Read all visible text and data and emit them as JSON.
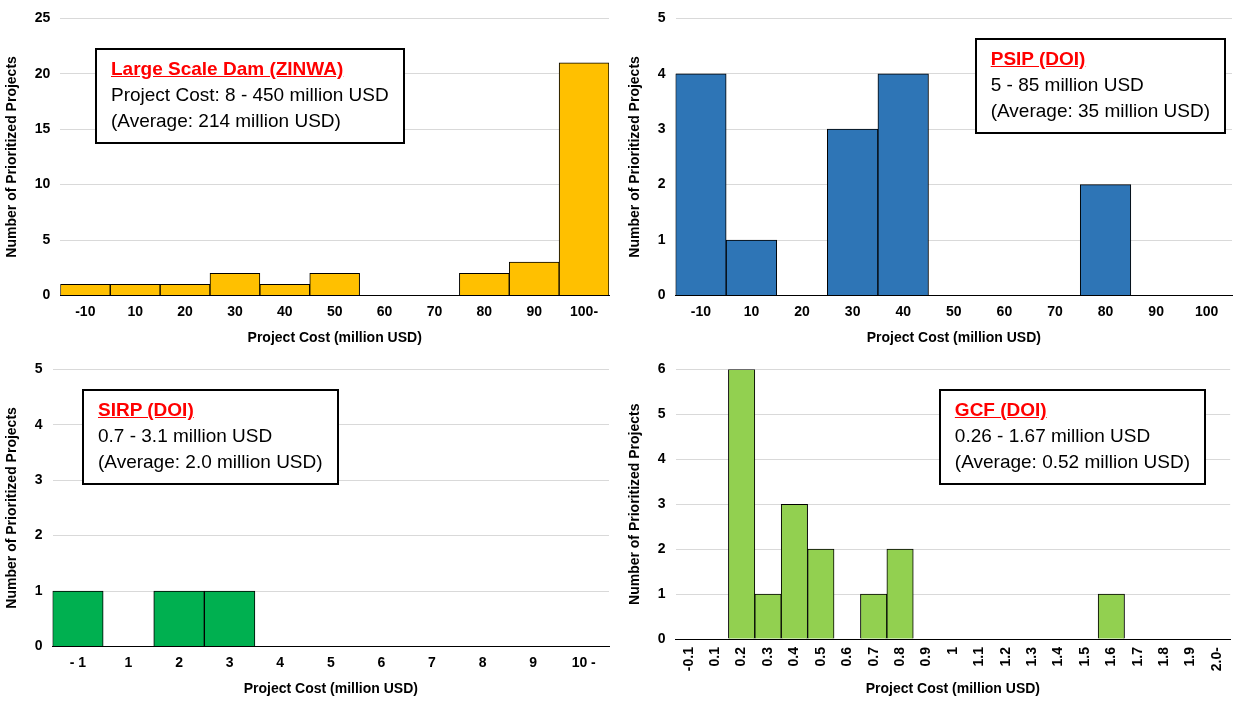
{
  "chart_data": [
    {
      "type": "bar",
      "xlabel": "Project Cost (million USD)",
      "ylabel": "Number of Prioritized Projects",
      "categories": [
        "-10",
        "10",
        "20",
        "30",
        "40",
        "50",
        "60",
        "70",
        "80",
        "90",
        "100-"
      ],
      "values": [
        1,
        1,
        1,
        2,
        1,
        2,
        0,
        0,
        2,
        3,
        21
      ],
      "color": "#ffc000",
      "ylim": [
        0,
        25
      ],
      "yticks": [
        0,
        5,
        10,
        15,
        20,
        25
      ],
      "grid": "y",
      "annotations": [
        "Large Scale Dam (ZINWA)",
        "Project Cost: 8 - 450 million USD",
        "(Average: 214 million USD)"
      ]
    },
    {
      "type": "bar",
      "xlabel": "Project Cost (million USD)",
      "ylabel": "Number of Prioritized Projects",
      "categories": [
        "-10",
        "10",
        "20",
        "30",
        "40",
        "50",
        "60",
        "70",
        "80",
        "90",
        "100"
      ],
      "values": [
        4,
        1,
        0,
        3,
        4,
        0,
        0,
        0,
        2,
        0,
        0
      ],
      "color": "#2e75b6",
      "ylim": [
        0,
        5
      ],
      "yticks": [
        0,
        1,
        2,
        3,
        4,
        5
      ],
      "grid": "y",
      "annotations": [
        "PSIP (DOI)",
        "5 - 85 million USD",
        "(Average: 35 million USD)"
      ]
    },
    {
      "type": "bar",
      "xlabel": "Project Cost (million USD)",
      "ylabel": "Number of Prioritized Projects",
      "categories": [
        "- 1",
        "1",
        "2",
        "3",
        "4",
        "5",
        "6",
        "7",
        "8",
        "9",
        "10 -"
      ],
      "values": [
        1,
        0,
        1,
        1,
        0,
        0,
        0,
        0,
        0,
        0,
        0
      ],
      "color": "#00b050",
      "ylim": [
        0,
        5
      ],
      "yticks": [
        0,
        1,
        2,
        3,
        4,
        5
      ],
      "grid": "y",
      "annotations": [
        "SIRP (DOI)",
        "0.7 - 3.1 million USD",
        "(Average: 2.0 million USD)"
      ]
    },
    {
      "type": "bar",
      "xlabel": "Project Cost (million USD)",
      "ylabel": "Number of Prioritized Projects",
      "categories": [
        "-0.1",
        "0.1",
        "0.2",
        "0.3",
        "0.4",
        "0.5",
        "0.6",
        "0.7",
        "0.8",
        "0.9",
        "1",
        "1.1",
        "1.2",
        "1.3",
        "1.4",
        "1.5",
        "1.6",
        "1.7",
        "1.8",
        "1.9",
        "2.0-"
      ],
      "values": [
        0,
        0,
        6,
        1,
        3,
        2,
        0,
        1,
        2,
        0,
        0,
        0,
        0,
        0,
        0,
        0,
        1,
        0,
        0,
        0,
        0
      ],
      "color": "#92d050",
      "ylim": [
        0,
        6
      ],
      "yticks": [
        0,
        1,
        2,
        3,
        4,
        5,
        6
      ],
      "grid": "y",
      "annotations": [
        "GCF (DOI)",
        "0.26 - 1.67 million USD",
        "(Average: 0.52 million USD)"
      ]
    }
  ]
}
